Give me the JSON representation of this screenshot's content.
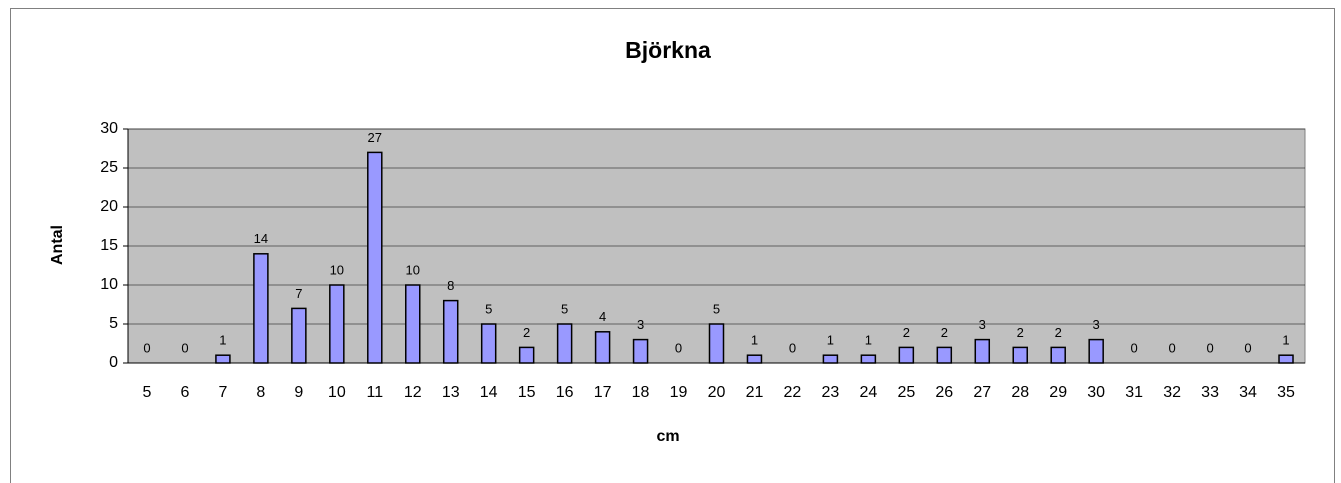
{
  "chart_data": {
    "type": "bar",
    "title": "Björkna",
    "x_label": "cm",
    "y_label": "Antal",
    "categories": [
      "5",
      "6",
      "7",
      "8",
      "9",
      "10",
      "11",
      "12",
      "13",
      "14",
      "15",
      "16",
      "17",
      "18",
      "19",
      "20",
      "21",
      "22",
      "23",
      "24",
      "25",
      "26",
      "27",
      "28",
      "29",
      "30",
      "31",
      "32",
      "33",
      "34",
      "35"
    ],
    "values": [
      0,
      0,
      1,
      14,
      7,
      10,
      27,
      10,
      8,
      5,
      2,
      5,
      4,
      3,
      0,
      5,
      1,
      0,
      1,
      1,
      2,
      2,
      3,
      2,
      2,
      3,
      0,
      0,
      0,
      0,
      1
    ],
    "color": "#9999ff",
    "ylim": [
      0,
      30
    ],
    "yticks": [
      0,
      5,
      10,
      15,
      20,
      25,
      30
    ],
    "grid": true
  }
}
